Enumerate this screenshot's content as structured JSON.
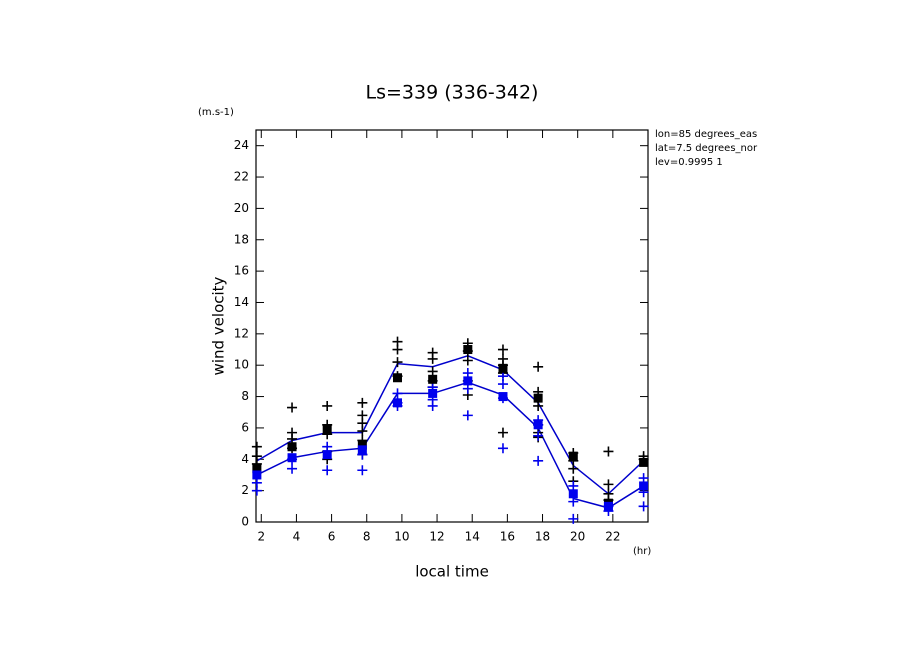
{
  "chart_data": {
    "type": "line",
    "title": "Ls=339 (336-342)",
    "ylabel": "wind velocity",
    "yunit": "(m.s-1)",
    "xlabel": "local time",
    "xunit": "(hr)",
    "annotations": [
      "lon=85 degrees_eas",
      "lat=7.5 degrees_nor",
      "lev=0.9995 1"
    ],
    "xlim": [
      1.7,
      24
    ],
    "ylim": [
      0,
      25
    ],
    "xticks": [
      2,
      4,
      6,
      8,
      10,
      12,
      14,
      16,
      18,
      20,
      22
    ],
    "yticks": [
      0,
      2,
      4,
      6,
      8,
      10,
      12,
      14,
      16,
      18,
      20,
      22,
      24
    ],
    "series": [
      {
        "marker": "line",
        "color": "#0000cc",
        "x": [
          1.75,
          3.75,
          5.75,
          7.75,
          9.75,
          11.75,
          13.75,
          15.75,
          17.75,
          19.75,
          21.75,
          23.75
        ],
        "values": [
          3.9,
          5.2,
          5.7,
          5.7,
          10.1,
          9.9,
          10.6,
          9.7,
          7.6,
          3.6,
          1.8,
          3.9
        ]
      },
      {
        "marker": "line",
        "color": "#0000cc",
        "x": [
          1.75,
          3.75,
          5.75,
          7.75,
          9.75,
          11.75,
          13.75,
          15.75,
          17.75,
          19.75,
          21.75,
          23.75
        ],
        "values": [
          3.0,
          4.1,
          4.5,
          4.7,
          8.2,
          8.2,
          8.9,
          8.1,
          6.0,
          1.5,
          0.9,
          2.3
        ]
      },
      {
        "marker": "plus",
        "color": "#000000",
        "x": [
          1.75,
          1.75,
          1.75,
          3.75,
          3.75,
          3.75,
          3.75,
          5.75,
          5.75,
          5.75,
          5.75,
          5.75,
          7.75,
          7.75,
          7.75,
          7.75,
          7.75,
          7.75,
          9.75,
          9.75,
          9.75,
          9.75,
          11.75,
          11.75,
          11.75,
          11.75,
          11.75,
          13.75,
          13.75,
          13.75,
          13.75,
          13.75,
          15.75,
          15.75,
          15.75,
          15.75,
          15.75,
          17.75,
          17.75,
          17.75,
          17.75,
          17.75,
          17.75,
          19.75,
          19.75,
          19.75,
          19.75,
          21.75,
          21.75,
          21.75,
          21.75,
          23.75,
          23.75
        ],
        "values": [
          4.8,
          4.2,
          3.7,
          7.3,
          5.7,
          5.3,
          4.7,
          7.4,
          6.2,
          5.6,
          4.5,
          4.0,
          7.6,
          6.8,
          6.3,
          5.8,
          5.2,
          4.3,
          11.5,
          11.0,
          10.2,
          9.3,
          10.8,
          10.4,
          9.6,
          9.0,
          8.6,
          11.4,
          10.9,
          10.3,
          9.0,
          8.1,
          11.0,
          10.4,
          10.0,
          9.5,
          5.7,
          9.9,
          8.3,
          7.4,
          6.2,
          5.7,
          5.4,
          4.4,
          3.9,
          3.4,
          2.6,
          4.5,
          2.4,
          1.8,
          1.4,
          4.2,
          4.0
        ]
      },
      {
        "marker": "plus",
        "color": "#0000ee",
        "x": [
          1.75,
          1.75,
          3.75,
          3.75,
          5.75,
          5.75,
          7.75,
          7.75,
          9.75,
          9.75,
          9.75,
          11.75,
          11.75,
          11.75,
          13.75,
          13.75,
          13.75,
          15.75,
          15.75,
          15.75,
          15.75,
          17.75,
          17.75,
          17.75,
          17.75,
          19.75,
          19.75,
          19.75,
          21.75,
          21.75,
          23.75,
          23.75,
          23.75
        ],
        "values": [
          2.5,
          2.0,
          4.0,
          3.4,
          4.8,
          3.3,
          4.3,
          3.3,
          8.2,
          7.6,
          7.4,
          8.6,
          7.8,
          7.4,
          9.5,
          8.5,
          6.8,
          9.3,
          8.8,
          7.9,
          4.7,
          6.5,
          6.2,
          5.5,
          3.9,
          2.3,
          1.3,
          0.2,
          1.0,
          0.7,
          2.8,
          1.9,
          1.0
        ]
      },
      {
        "marker": "square",
        "color": "#000000",
        "x": [
          1.75,
          3.75,
          5.75,
          7.75,
          9.75,
          11.75,
          13.75,
          15.75,
          17.75,
          19.75,
          21.75,
          23.75
        ],
        "values": [
          3.4,
          4.8,
          5.9,
          4.9,
          9.2,
          9.1,
          11.0,
          9.8,
          7.9,
          4.2,
          1.2,
          3.8
        ]
      },
      {
        "marker": "square",
        "color": "#0000ee",
        "x": [
          1.75,
          3.75,
          5.75,
          7.75,
          9.75,
          11.75,
          13.75,
          15.75,
          17.75,
          19.75,
          21.75,
          23.75
        ],
        "values": [
          3.0,
          4.1,
          4.3,
          4.6,
          7.6,
          8.2,
          9.0,
          8.0,
          6.2,
          1.8,
          1.0,
          2.3
        ]
      }
    ]
  }
}
